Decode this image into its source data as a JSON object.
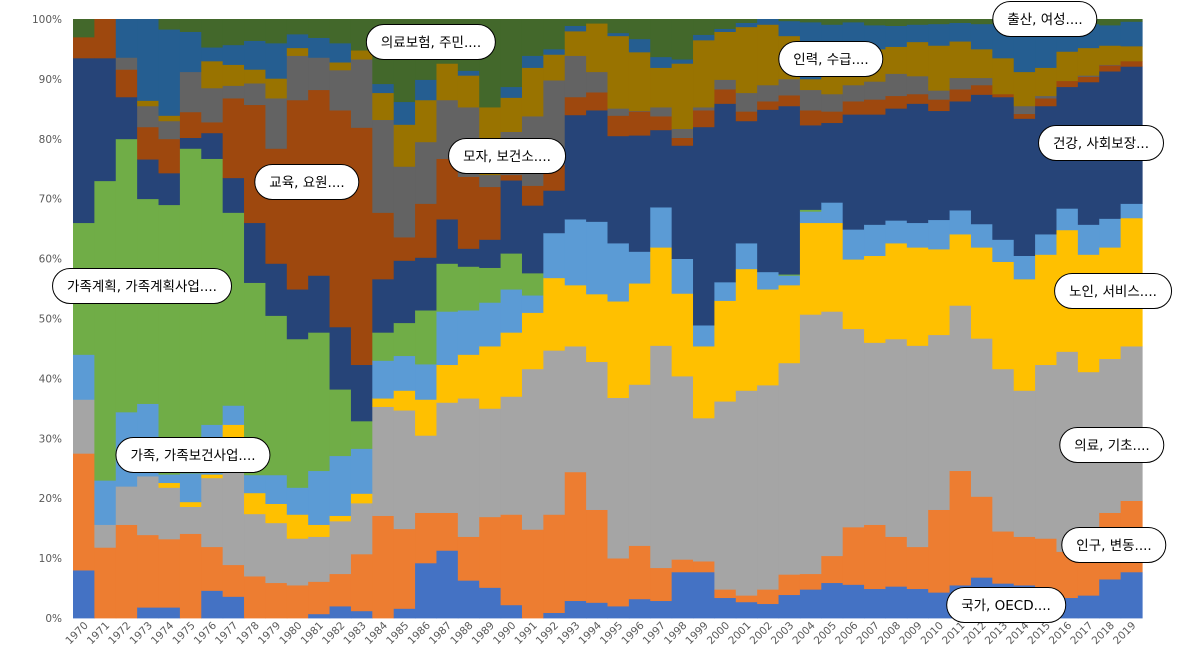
{
  "chart_data": {
    "type": "stacked-bar-100",
    "title": "",
    "xlabel": "",
    "ylabel": "",
    "ylim": [
      0,
      100
    ],
    "yticks": [
      "0%",
      "10%",
      "20%",
      "30%",
      "40%",
      "50%",
      "60%",
      "70%",
      "80%",
      "90%",
      "100%"
    ],
    "grid": false,
    "legend": "callouts",
    "categories": [
      "1970",
      "1971",
      "1972",
      "1973",
      "1974",
      "1975",
      "1976",
      "1977",
      "1978",
      "1979",
      "1980",
      "1981",
      "1982",
      "1983",
      "1984",
      "1985",
      "1986",
      "1987",
      "1988",
      "1989",
      "1990",
      "1991",
      "1992",
      "1993",
      "1994",
      "1995",
      "1996",
      "1997",
      "1998",
      "1999",
      "2000",
      "2001",
      "2002",
      "2003",
      "2004",
      "2005",
      "2006",
      "2007",
      "2008",
      "2009",
      "2010",
      "2011",
      "2012",
      "2013",
      "2014",
      "2015",
      "2016",
      "2017",
      "2018",
      "2019"
    ],
    "series": [
      {
        "name": "국가, OECD....",
        "color": "#4472C4",
        "values": [
          8,
          0,
          0,
          1.8,
          1.8,
          0,
          4.6,
          3.6,
          0,
          0,
          0,
          0.7,
          2,
          1.2,
          0,
          1.6,
          9.2,
          11.3,
          6.3,
          5.1,
          2.2,
          0,
          0.9,
          2.9,
          2.6,
          2,
          3.2,
          2.9,
          7.7,
          7.7,
          3.4,
          2.7,
          2.4,
          3.9,
          4.8,
          5.9,
          5.6,
          4.9,
          5.3,
          4.9,
          4.3,
          5.5,
          6.8,
          5.8,
          5.5,
          4.8,
          3.4,
          3.8,
          6.5,
          7.7
        ]
      },
      {
        "name": "인구, 변동....",
        "color": "#ED7D31",
        "values": [
          19.5,
          11.8,
          15.6,
          12.1,
          11.4,
          14.1,
          7.3,
          5.3,
          7,
          5.9,
          5.5,
          5.4,
          5.4,
          9.5,
          17.1,
          13.3,
          8.4,
          6.3,
          7.3,
          11.8,
          15.1,
          14.8,
          16.4,
          21.5,
          15.5,
          8,
          8.9,
          5.5,
          2.1,
          1.8,
          1.4,
          1.1,
          2.4,
          3.4,
          2.6,
          4.5,
          9.6,
          10.7,
          8.3,
          7,
          13.8,
          19.1,
          13.5,
          8.7,
          8.1,
          8.5,
          7.7,
          6.8,
          11.1,
          11.9
        ]
      },
      {
        "name": "의료, 기초....",
        "color": "#A5A5A5",
        "values": [
          9,
          3.8,
          6.4,
          9.8,
          8.6,
          4.5,
          11.5,
          21.1,
          10.4,
          10,
          7.8,
          7.5,
          8.8,
          8.5,
          18.2,
          19.8,
          12.9,
          18.4,
          23.1,
          18.1,
          19.7,
          26.8,
          27.4,
          21,
          24.7,
          26.8,
          26.9,
          37.1,
          30.6,
          23.9,
          31.4,
          34.2,
          34.1,
          35.3,
          43.3,
          40.8,
          33.1,
          30.4,
          33,
          33.6,
          29.2,
          27.6,
          26.4,
          27.1,
          24.4,
          29,
          33.4,
          30.5,
          25.7,
          25.8
        ]
      },
      {
        "name": "노인, 서비스....",
        "color": "#FFC000",
        "values": [
          0,
          0,
          0,
          0,
          0.8,
          0.8,
          0.6,
          2.3,
          3.5,
          3.2,
          4,
          2,
          0.9,
          1.6,
          1.4,
          3.3,
          6,
          6.3,
          7.3,
          10.4,
          10.7,
          9.4,
          12.1,
          10.2,
          11.3,
          16.1,
          16.9,
          16.4,
          13.8,
          12,
          16.8,
          20.3,
          16,
          13,
          15.3,
          14.8,
          11.6,
          14.5,
          16,
          16.4,
          14.3,
          11.9,
          15.2,
          17.9,
          18.6,
          18.4,
          20.3,
          19.6,
          18.6,
          21.4
        ]
      },
      {
        "name": "가족, 가족보건사업....",
        "color": "#5B9BD5",
        "values": [
          7.5,
          7.4,
          12.4,
          12.1,
          1.4,
          4.8,
          8.3,
          3.2,
          3,
          4.8,
          4.5,
          9,
          10,
          7.5,
          6.3,
          5.8,
          5.9,
          8.9,
          7.4,
          7.3,
          7.2,
          2.9,
          7.5,
          11,
          12.1,
          9.7,
          5.3,
          6.7,
          5.8,
          3.5,
          3.1,
          4.3,
          2.9,
          1.6,
          1.9,
          3.4,
          5,
          5.2,
          3.8,
          4.1,
          4.9,
          4,
          3.9,
          3.7,
          3.9,
          3.4,
          3.6,
          5,
          4.8,
          2.4
        ]
      },
      {
        "name": "가족계획, 가족계획사업....",
        "color": "#70AD47",
        "values": [
          22,
          50,
          45.6,
          34.2,
          45,
          54.2,
          44.4,
          32.2,
          32.1,
          26.6,
          24.8,
          23.1,
          11.1,
          4.6,
          4.7,
          5.5,
          9,
          8,
          7.3,
          5.8,
          6,
          3.7,
          0,
          0,
          0,
          0,
          0,
          0,
          0,
          0,
          0,
          0,
          0,
          0.2,
          0.3,
          0,
          0,
          0,
          0,
          0,
          0,
          0,
          0,
          0,
          0,
          0,
          0,
          0,
          0,
          0
        ]
      },
      {
        "name": "건강, 사회보장...",
        "color": "#264478",
        "values": [
          27.5,
          20.5,
          7,
          6.6,
          5.3,
          1.8,
          4.3,
          5.8,
          10,
          8.7,
          8.3,
          9.5,
          10.4,
          9.4,
          8.9,
          10.4,
          8.8,
          7.4,
          3,
          4.7,
          12.2,
          11.3,
          7.1,
          17.4,
          18.6,
          17.9,
          19.4,
          12.9,
          18.9,
          33.1,
          29.8,
          20.4,
          27.1,
          28.1,
          14.1,
          13.3,
          19.2,
          18.4,
          18.7,
          19.9,
          18.2,
          18.2,
          21.6,
          23.8,
          22.9,
          21.4,
          20.3,
          23.8,
          24.6,
          22.9
        ]
      },
      {
        "name": "교육, 요원....",
        "color": "#9E480E",
        "values": [
          3.5,
          6.5,
          4.6,
          5.4,
          5.7,
          4.3,
          1.8,
          13.3,
          19.7,
          19.2,
          31.6,
          31,
          36.2,
          39.6,
          11.1,
          3.9,
          9,
          10.1,
          12,
          8.8,
          0.9,
          3.3,
          4.3,
          3,
          3,
          3.4,
          4,
          2.3,
          1.3,
          2.8,
          2.4,
          1.6,
          1.4,
          1.8,
          2.5,
          1.9,
          2.2,
          2.5,
          2.1,
          1.6,
          1.9,
          2,
          1.6,
          0.5,
          0.8,
          1.3,
          1,
          0.9,
          1,
          0.9
        ]
      },
      {
        "name": "모자, 보건소....",
        "color": "#636363",
        "values": [
          0,
          0,
          2,
          3.5,
          3,
          6.7,
          5.7,
          2.1,
          3.6,
          8.4,
          7.4,
          5.4,
          6.7,
          11.4,
          15.5,
          11.8,
          10.3,
          9.8,
          11.6,
          2,
          7.2,
          11.6,
          14.1,
          6.9,
          3.4,
          1.2,
          0.1,
          1.5,
          1.5,
          0.5,
          1.6,
          3.1,
          2.7,
          2.7,
          3.4,
          2.9,
          2.7,
          3,
          3.7,
          3,
          1.5,
          1.9,
          1.2,
          0,
          1.3,
          0.4,
          0,
          0.2,
          0.1,
          0
        ]
      },
      {
        "name": "인력, 수급....",
        "color": "#997300",
        "values": [
          0,
          0,
          0,
          0.9,
          0.9,
          0,
          4.5,
          3.5,
          2.3,
          3.3,
          1.3,
          0,
          1.3,
          1.5,
          4.5,
          7,
          7,
          6.1,
          5.3,
          11.3,
          5.7,
          8.1,
          4.3,
          4.1,
          8.1,
          12.1,
          9.8,
          6.6,
          10.9,
          11.2,
          8,
          11,
          10.1,
          7.2,
          1.8,
          3.2,
          2.7,
          5.4,
          4.5,
          5.7,
          7.5,
          6.1,
          4.8,
          6,
          5.7,
          4.7,
          4.9,
          4.6,
          3.2,
          2.5
        ]
      },
      {
        "name": "출산, 여성....",
        "color": "#255E91",
        "values": [
          0,
          0,
          6.4,
          13.6,
          14.4,
          6.7,
          2.3,
          3.3,
          4.8,
          5.9,
          2.3,
          3.3,
          3.2,
          0,
          1.5,
          3.8,
          3.4,
          0,
          0.8,
          0,
          1.8,
          2,
          0.9,
          0.9,
          0,
          0.5,
          2.2,
          1.8,
          0.7,
          0.9,
          0.5,
          0.7,
          0.9,
          2.5,
          9.5,
          8.4,
          7.8,
          4,
          3.5,
          2.9,
          3.6,
          3.1,
          4.2,
          5.7,
          8,
          7.3,
          4.6,
          4,
          3.4,
          4.1
        ]
      },
      {
        "name": "의료보험, 주민....",
        "color": "#43682B",
        "values": [
          3,
          0,
          0,
          0,
          1.7,
          2.1,
          4.7,
          4.3,
          3.6,
          4,
          2.5,
          3.1,
          4,
          5.2,
          10.8,
          13.8,
          10.1,
          7.4,
          8.6,
          14.7,
          11.3,
          6.1,
          5,
          1.1,
          0.7,
          2.3,
          3.3,
          6.3,
          6.7,
          2.6,
          1.6,
          0.6,
          0,
          0.3,
          0.5,
          0.9,
          0.5,
          1,
          1.1,
          0.9,
          0.8,
          0.6,
          0.8,
          0.8,
          0.8,
          0.8,
          0.8,
          0.8,
          1,
          0.4
        ]
      }
    ]
  }
}
